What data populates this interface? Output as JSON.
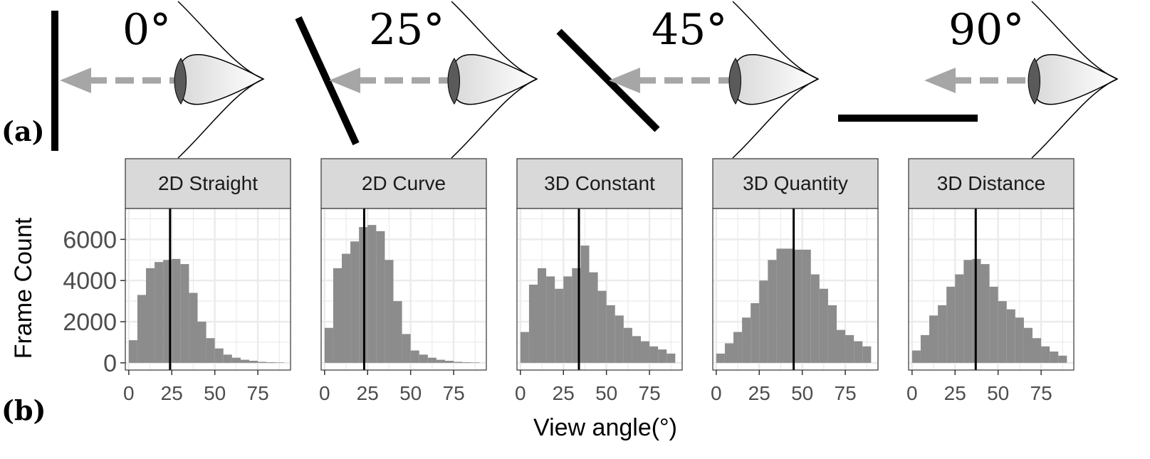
{
  "panel_labels": {
    "a": "(a)",
    "b": "(b)"
  },
  "view_diagram": {
    "angle_labels": [
      "0°",
      "25°",
      "45°",
      "90°"
    ]
  },
  "colors": {
    "bar_fill": "#8c8c8c",
    "strip_fill": "#d9d9d9",
    "grid": "#ebebeb",
    "mean_line": "#000000",
    "arrow": "#a6a6a6",
    "tick_text": "#4d4d4d"
  },
  "chart_data": {
    "type": "bar",
    "ylabel": "Frame Count",
    "xlabel": "View angle(°)",
    "x_ticks": [
      0,
      25,
      50,
      75
    ],
    "y_ticks": [
      0,
      2000,
      4000,
      6000
    ],
    "xlim": [
      -2,
      94
    ],
    "ylim": [
      -350,
      7500
    ],
    "bin_width": 5,
    "bin_starts": [
      0,
      5,
      10,
      15,
      20,
      25,
      30,
      35,
      40,
      45,
      50,
      55,
      60,
      65,
      70,
      75,
      80,
      85
    ],
    "grid": true,
    "facets": [
      {
        "name": "2D Straight",
        "mean": 24,
        "values": [
          1100,
          3300,
          4600,
          4900,
          5000,
          5050,
          4800,
          3400,
          2000,
          1200,
          700,
          400,
          250,
          150,
          100,
          50,
          30,
          20
        ]
      },
      {
        "name": "2D Curve",
        "mean": 23,
        "values": [
          1700,
          4600,
          5300,
          5900,
          6600,
          6700,
          6400,
          5000,
          3000,
          1400,
          600,
          400,
          250,
          150,
          100,
          50,
          30,
          20
        ]
      },
      {
        "name": "3D Constant",
        "mean": 34,
        "values": [
          1500,
          3800,
          4600,
          4200,
          3600,
          4200,
          4600,
          5700,
          4400,
          3500,
          2800,
          2300,
          1700,
          1300,
          1050,
          800,
          650,
          450
        ]
      },
      {
        "name": "3D Quantity",
        "mean": 45,
        "values": [
          450,
          950,
          1500,
          2200,
          2900,
          4000,
          5000,
          5550,
          5550,
          5500,
          5500,
          4300,
          3600,
          2800,
          1600,
          1350,
          1050,
          800
        ]
      },
      {
        "name": "3D Distance",
        "mean": 37,
        "values": [
          600,
          1350,
          2300,
          2800,
          3700,
          4300,
          5000,
          5050,
          4800,
          3700,
          3000,
          2600,
          2200,
          1700,
          1200,
          800,
          550,
          350
        ]
      }
    ]
  }
}
